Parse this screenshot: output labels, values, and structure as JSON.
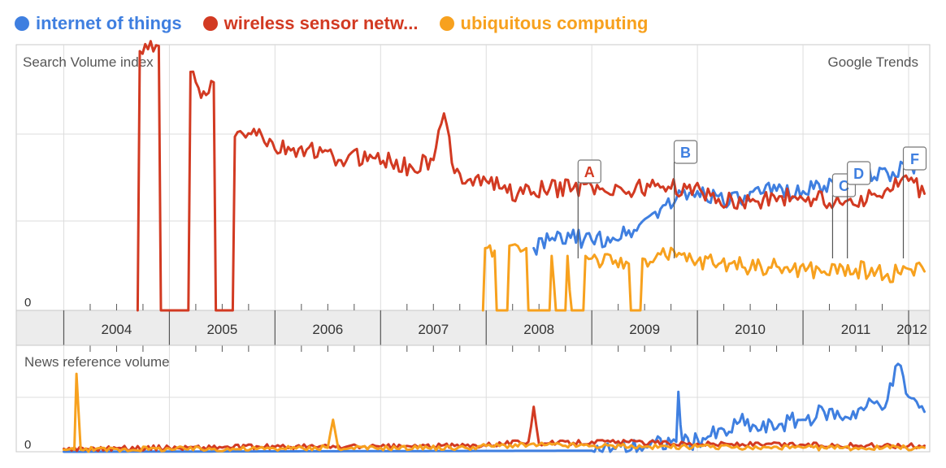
{
  "legend": [
    {
      "label": "internet of things",
      "color": "#3f7fe0"
    },
    {
      "label": "wireless sensor netw...",
      "color": "#d23a22"
    },
    {
      "label": "ubiquitous computing",
      "color": "#f7a11e"
    }
  ],
  "chart_data": {
    "type": "line",
    "top_panel": {
      "title": "Search Volume index",
      "watermark": "Google Trends",
      "zero_label": "0",
      "x_ticks": [
        "2004",
        "2005",
        "2006",
        "2007",
        "2008",
        "2009",
        "2010",
        "2011",
        "2012"
      ],
      "series": [
        {
          "name": "internet of things",
          "color": "#3f7fe0",
          "points": [
            [
              2008.45,
              0.24
            ],
            [
              2008.6,
              0.27
            ],
            [
              2008.8,
              0.28
            ],
            [
              2009.0,
              0.27
            ],
            [
              2009.2,
              0.28
            ],
            [
              2009.4,
              0.31
            ],
            [
              2009.6,
              0.38
            ],
            [
              2009.8,
              0.43
            ],
            [
              2010.0,
              0.46
            ],
            [
              2010.2,
              0.44
            ],
            [
              2010.4,
              0.42
            ],
            [
              2010.6,
              0.45
            ],
            [
              2010.8,
              0.47
            ],
            [
              2011.0,
              0.46
            ],
            [
              2011.2,
              0.48
            ],
            [
              2011.4,
              0.5
            ],
            [
              2011.6,
              0.52
            ],
            [
              2011.8,
              0.53
            ],
            [
              2012.0,
              0.55
            ],
            [
              2012.15,
              0.58
            ]
          ]
        },
        {
          "name": "wireless sensor netw...",
          "color": "#d23a22",
          "points": [
            [
              2004.7,
              0.0
            ],
            [
              2004.72,
              1.0
            ],
            [
              2004.9,
              1.02
            ],
            [
              2004.92,
              0.0
            ],
            [
              2005.18,
              0.0
            ],
            [
              2005.2,
              0.92
            ],
            [
              2005.3,
              0.82
            ],
            [
              2005.42,
              0.88
            ],
            [
              2005.44,
              0.0
            ],
            [
              2005.6,
              0.0
            ],
            [
              2005.62,
              0.67
            ],
            [
              2005.8,
              0.7
            ],
            [
              2006.0,
              0.62
            ],
            [
              2006.3,
              0.62
            ],
            [
              2006.6,
              0.58
            ],
            [
              2006.9,
              0.6
            ],
            [
              2007.1,
              0.57
            ],
            [
              2007.3,
              0.55
            ],
            [
              2007.5,
              0.58
            ],
            [
              2007.6,
              0.76
            ],
            [
              2007.7,
              0.53
            ],
            [
              2008.0,
              0.5
            ],
            [
              2008.3,
              0.45
            ],
            [
              2008.6,
              0.47
            ],
            [
              2009.0,
              0.48
            ],
            [
              2009.3,
              0.46
            ],
            [
              2009.6,
              0.48
            ],
            [
              2009.9,
              0.47
            ],
            [
              2010.2,
              0.43
            ],
            [
              2010.5,
              0.42
            ],
            [
              2010.8,
              0.44
            ],
            [
              2011.1,
              0.43
            ],
            [
              2011.4,
              0.42
            ],
            [
              2011.7,
              0.44
            ],
            [
              2012.0,
              0.5
            ],
            [
              2012.15,
              0.45
            ]
          ]
        },
        {
          "name": "ubiquitous computing",
          "color": "#f7a11e",
          "points": [
            [
              2007.97,
              0.0
            ],
            [
              2007.99,
              0.24
            ],
            [
              2008.08,
              0.23
            ],
            [
              2008.1,
              0.0
            ],
            [
              2008.2,
              0.0
            ],
            [
              2008.22,
              0.25
            ],
            [
              2008.38,
              0.24
            ],
            [
              2008.4,
              0.0
            ],
            [
              2008.6,
              0.0
            ],
            [
              2008.62,
              0.21
            ],
            [
              2008.66,
              0.0
            ],
            [
              2008.75,
              0.0
            ],
            [
              2008.77,
              0.21
            ],
            [
              2008.81,
              0.0
            ],
            [
              2008.92,
              0.0
            ],
            [
              2008.94,
              0.21
            ],
            [
              2009.0,
              0.2
            ],
            [
              2009.2,
              0.18
            ],
            [
              2009.35,
              0.18
            ],
            [
              2009.37,
              0.0
            ],
            [
              2009.46,
              0.0
            ],
            [
              2009.48,
              0.2
            ],
            [
              2009.7,
              0.21
            ],
            [
              2010.0,
              0.19
            ],
            [
              2010.3,
              0.18
            ],
            [
              2010.6,
              0.17
            ],
            [
              2010.9,
              0.16
            ],
            [
              2011.2,
              0.15
            ],
            [
              2011.5,
              0.16
            ],
            [
              2011.8,
              0.14
            ],
            [
              2012.0,
              0.16
            ],
            [
              2012.15,
              0.15
            ]
          ]
        }
      ],
      "annotations": [
        {
          "label": "A",
          "x": 2008.87,
          "color": "#d23a22"
        },
        {
          "label": "B",
          "x": 2009.78,
          "color": "#3f7fe0"
        },
        {
          "label": "C",
          "x": 2011.28,
          "color": "#3f7fe0"
        },
        {
          "label": "D",
          "x": 2011.42,
          "color": "#3f7fe0"
        },
        {
          "label": "F",
          "x": 2011.95,
          "color": "#3f7fe0"
        }
      ]
    },
    "bottom_panel": {
      "title": "News reference volume",
      "zero_label": "0",
      "series": [
        {
          "name": "internet of things",
          "color": "#3f7fe0",
          "points": [
            [
              2004.0,
              0.0
            ],
            [
              2009.0,
              0.01
            ],
            [
              2009.5,
              0.05
            ],
            [
              2009.8,
              0.1
            ],
            [
              2009.82,
              0.6
            ],
            [
              2009.86,
              0.08
            ],
            [
              2010.1,
              0.15
            ],
            [
              2010.3,
              0.2
            ],
            [
              2010.4,
              0.3
            ],
            [
              2010.6,
              0.22
            ],
            [
              2010.8,
              0.28
            ],
            [
              2011.0,
              0.32
            ],
            [
              2011.2,
              0.4
            ],
            [
              2011.4,
              0.35
            ],
            [
              2011.6,
              0.45
            ],
            [
              2011.8,
              0.52
            ],
            [
              2011.9,
              0.88
            ],
            [
              2012.0,
              0.55
            ],
            [
              2012.15,
              0.4
            ]
          ]
        },
        {
          "name": "wireless sensor netw...",
          "color": "#d23a22",
          "points": [
            [
              2004.0,
              0.03
            ],
            [
              2005.0,
              0.04
            ],
            [
              2006.0,
              0.05
            ],
            [
              2007.0,
              0.05
            ],
            [
              2007.8,
              0.06
            ],
            [
              2008.4,
              0.1
            ],
            [
              2008.45,
              0.45
            ],
            [
              2008.5,
              0.08
            ],
            [
              2009.0,
              0.1
            ],
            [
              2009.6,
              0.09
            ],
            [
              2010.0,
              0.08
            ],
            [
              2010.6,
              0.07
            ],
            [
              2011.0,
              0.07
            ],
            [
              2011.6,
              0.06
            ],
            [
              2012.15,
              0.06
            ]
          ]
        },
        {
          "name": "ubiquitous computing",
          "color": "#f7a11e",
          "points": [
            [
              2004.0,
              0.02
            ],
            [
              2004.1,
              0.02
            ],
            [
              2004.12,
              0.78
            ],
            [
              2004.16,
              0.02
            ],
            [
              2005.0,
              0.03
            ],
            [
              2006.0,
              0.03
            ],
            [
              2006.5,
              0.04
            ],
            [
              2006.55,
              0.32
            ],
            [
              2006.6,
              0.03
            ],
            [
              2007.0,
              0.04
            ],
            [
              2007.8,
              0.04
            ],
            [
              2008.0,
              0.06
            ],
            [
              2008.5,
              0.07
            ],
            [
              2009.0,
              0.06
            ],
            [
              2009.5,
              0.05
            ],
            [
              2010.0,
              0.05
            ],
            [
              2010.5,
              0.04
            ],
            [
              2011.0,
              0.04
            ],
            [
              2011.5,
              0.04
            ],
            [
              2012.15,
              0.04
            ]
          ]
        }
      ]
    },
    "x_range": [
      2003.55,
      2012.2
    ],
    "y_range_top": [
      0,
      1.0
    ],
    "y_range_bottom": [
      0,
      1.0
    ]
  }
}
